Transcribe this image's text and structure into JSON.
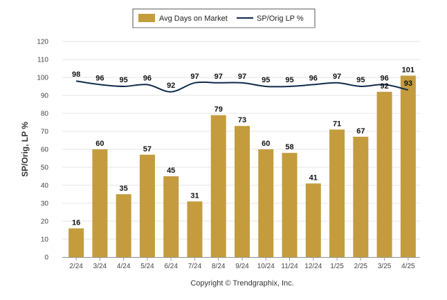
{
  "chart_data": {
    "type": "bar",
    "categories": [
      "2/24",
      "3/24",
      "4/24",
      "5/24",
      "6/24",
      "7/24",
      "8/24",
      "9/24",
      "10/24",
      "11/24",
      "12/24",
      "1/25",
      "2/25",
      "3/25",
      "4/25"
    ],
    "series": [
      {
        "name": "Avg Days on Market",
        "type": "bar",
        "color": "#c49c3e",
        "values": [
          16,
          60,
          35,
          57,
          45,
          31,
          79,
          73,
          60,
          58,
          41,
          71,
          67,
          92,
          101
        ]
      },
      {
        "name": "SP/Orig LP %",
        "type": "line",
        "color": "#0d2a4a",
        "values": [
          98,
          96,
          95,
          96,
          92,
          97,
          97,
          97,
          95,
          95,
          96,
          97,
          95,
          96,
          93
        ]
      }
    ],
    "ylabel": "SP/Orig, LP %",
    "ylim": [
      0,
      120
    ],
    "yticks": [
      0,
      10,
      20,
      30,
      40,
      50,
      60,
      70,
      80,
      90,
      100,
      110,
      120
    ],
    "grid": true,
    "legend_position": "top-center",
    "data_labels": true
  },
  "footer": {
    "copyright": "Copyright © Trendgraphix, Inc."
  }
}
